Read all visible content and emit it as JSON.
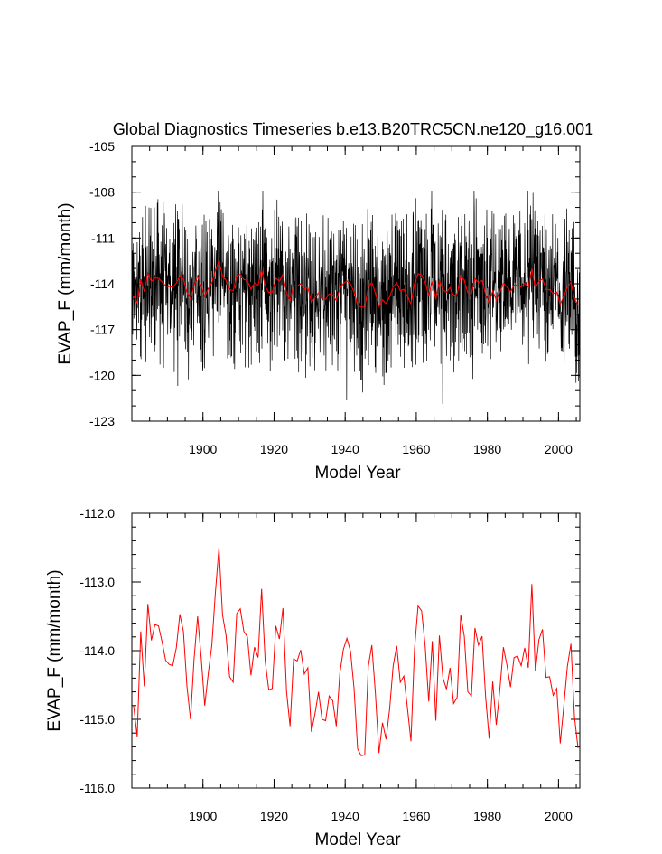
{
  "title": "Global Diagnostics Timeseries b.e13.B20TRC5CN.ne120_g16.001",
  "colors": {
    "monthly": "#000000",
    "annual": "#ff0000",
    "axes": "#000000"
  },
  "chart_data": [
    {
      "type": "line",
      "title": "Global Diagnostics Timeseries b.e13.B20TRC5CN.ne120_g16.001",
      "xlabel": "Model Year",
      "ylabel": "EVAP_F (mm/month)",
      "xlim": [
        1880,
        2006
      ],
      "ylim": [
        -123,
        -105
      ],
      "xticks": [
        "1900",
        "1920",
        "1940",
        "1960",
        "1980",
        "2000"
      ],
      "yticks": [
        "-105",
        "-108",
        "-111",
        "-114",
        "-117",
        "-120",
        "-123"
      ],
      "grid": false,
      "series": [
        {
          "kind": "monthly",
          "color": "#000000",
          "x_start": 1880,
          "step": 0.0833333,
          "count": 1512,
          "mean": -114.3,
          "range": [
            -121.9,
            -107.9
          ]
        },
        {
          "kind": "annual",
          "color": "#ff0000",
          "x": [
            1880,
            1881,
            1882,
            1883,
            1884,
            1885,
            1886,
            1887,
            1888,
            1889,
            1890,
            1891,
            1892,
            1893,
            1894,
            1895,
            1896,
            1897,
            1898,
            1899,
            1900,
            1901,
            1902,
            1903,
            1904,
            1905,
            1906,
            1907,
            1908,
            1909,
            1910,
            1911,
            1912,
            1913,
            1914,
            1915,
            1916,
            1917,
            1918,
            1919,
            1920,
            1921,
            1922,
            1923,
            1924,
            1925,
            1926,
            1927,
            1928,
            1929,
            1930,
            1931,
            1932,
            1933,
            1934,
            1935,
            1936,
            1937,
            1938,
            1939,
            1940,
            1941,
            1942,
            1943,
            1944,
            1945,
            1946,
            1947,
            1948,
            1949,
            1950,
            1951,
            1952,
            1953,
            1954,
            1955,
            1956,
            1957,
            1958,
            1959,
            1960,
            1961,
            1962,
            1963,
            1964,
            1965,
            1966,
            1967,
            1968,
            1969,
            1970,
            1971,
            1972,
            1973,
            1974,
            1975,
            1976,
            1977,
            1978,
            1979,
            1980,
            1981,
            1982,
            1983,
            1984,
            1985,
            1986,
            1987,
            1988,
            1989,
            1990,
            1991,
            1992,
            1993,
            1994,
            1995,
            1996,
            1997,
            1998,
            1999,
            2000,
            2001,
            2002,
            2003,
            2004,
            2005
          ],
          "y": [
            -114.8,
            -115.25,
            -113.72,
            -114.52,
            -113.32,
            -113.85,
            -113.62,
            -113.64,
            -113.87,
            -114.14,
            -114.2,
            -114.22,
            -113.96,
            -113.47,
            -113.72,
            -114.52,
            -115.0,
            -114.12,
            -113.5,
            -114.1,
            -114.8,
            -114.33,
            -113.92,
            -113.15,
            -112.5,
            -113.48,
            -113.78,
            -114.38,
            -114.46,
            -113.46,
            -113.39,
            -113.72,
            -113.8,
            -114.36,
            -113.95,
            -114.1,
            -113.1,
            -114.15,
            -114.57,
            -114.55,
            -113.64,
            -113.83,
            -113.38,
            -114.59,
            -115.1,
            -114.12,
            -114.15,
            -113.99,
            -114.34,
            -114.25,
            -115.18,
            -114.92,
            -114.6,
            -115.0,
            -115.02,
            -114.66,
            -114.73,
            -115.1,
            -114.33,
            -113.98,
            -113.82,
            -114.01,
            -114.55,
            -115.43,
            -115.53,
            -115.52,
            -114.23,
            -113.92,
            -114.62,
            -115.49,
            -115.05,
            -115.29,
            -114.85,
            -114.22,
            -113.93,
            -114.46,
            -114.37,
            -114.83,
            -115.32,
            -113.98,
            -113.35,
            -113.42,
            -113.93,
            -114.74,
            -113.86,
            -115.02,
            -113.78,
            -114.4,
            -114.56,
            -114.25,
            -114.77,
            -114.68,
            -113.48,
            -113.79,
            -114.6,
            -114.66,
            -113.67,
            -113.92,
            -113.79,
            -114.67,
            -115.28,
            -114.45,
            -115.08,
            -114.57,
            -113.95,
            -114.21,
            -114.53,
            -114.1,
            -114.08,
            -114.22,
            -113.96,
            -114.25,
            -113.03,
            -114.3,
            -113.84,
            -113.69,
            -114.39,
            -114.38,
            -114.65,
            -114.55,
            -115.35,
            -114.8,
            -114.23,
            -113.9,
            -114.97,
            -115.42
          ]
        }
      ]
    },
    {
      "type": "line",
      "title": "",
      "xlabel": "Model Year",
      "ylabel": "EVAP_F (mm/month)",
      "xlim": [
        1880,
        2006
      ],
      "ylim": [
        -116,
        -112
      ],
      "xticks": [
        "1900",
        "1920",
        "1940",
        "1960",
        "1980",
        "2000"
      ],
      "yticks": [
        "-112.0",
        "-113.0",
        "-114.0",
        "-115.0",
        "-116.0"
      ],
      "grid": false,
      "series": [
        {
          "kind": "annual",
          "color": "#ff0000",
          "ref": "annual"
        }
      ]
    }
  ]
}
